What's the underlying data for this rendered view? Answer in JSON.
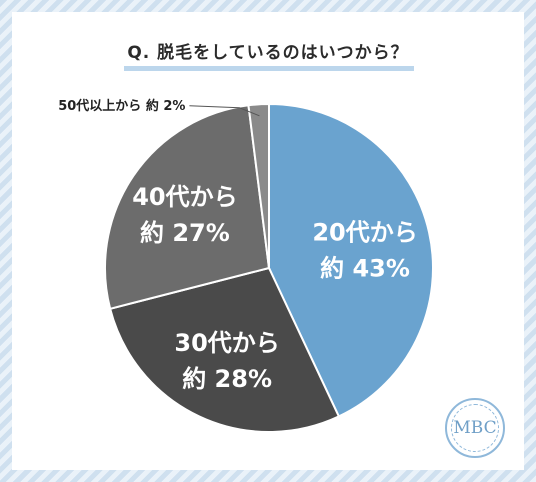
{
  "title": "Q. 脱毛をしているのはいつから？",
  "logo_text": "MBC",
  "chart_data": {
    "type": "pie",
    "slices": [
      {
        "label": "20代から",
        "value_text": "約 43%",
        "value": 43,
        "color": "#6aa3cf"
      },
      {
        "label": "30代から",
        "value_text": "約 28%",
        "value": 28,
        "color": "#4a4a4a"
      },
      {
        "label": "40代から",
        "value_text": "約 27%",
        "value": 27,
        "color": "#6c6c6c"
      },
      {
        "label": "50代以上から",
        "value_text": "約 2%",
        "value": 2,
        "color": "#8a8a8a"
      }
    ]
  }
}
